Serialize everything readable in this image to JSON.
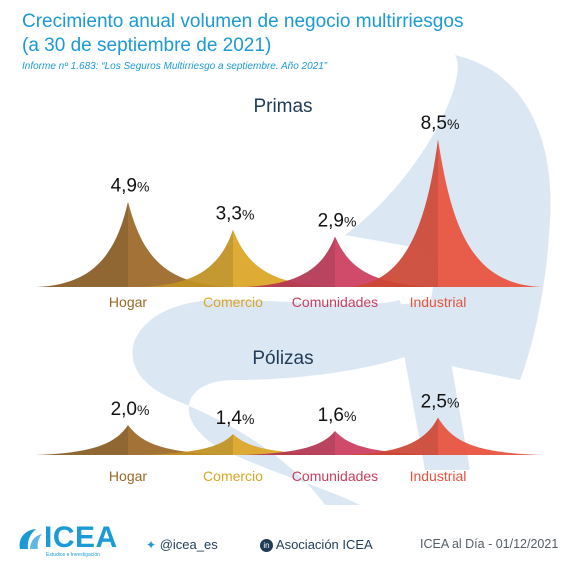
{
  "header": {
    "title_line1": "Crecimiento anual volumen de negocio multirriesgos",
    "title_line2": "(a 30 de septiembre de 2021)",
    "subtitle": "Informe nº 1.683: “Los Seguros Multirriesgo a septiembre. Año 2021”"
  },
  "colors": {
    "Hogar": "#9b6728",
    "Comercio": "#dba526",
    "Comunidades": "#cb3d5e",
    "Industrial": "#e8513c",
    "title": "#1b9ad6",
    "watermark": "#dbe8f3"
  },
  "chart_data": [
    {
      "type": "area",
      "title": "Primas",
      "categories": [
        "Hogar",
        "Comercio",
        "Comunidades",
        "Industrial"
      ],
      "values": [
        4.9,
        3.3,
        2.9,
        8.5
      ],
      "value_labels": [
        "4,9",
        "3,3",
        "2,9",
        "8,5"
      ],
      "unit": "%"
    },
    {
      "type": "area",
      "title": "Pólizas",
      "categories": [
        "Hogar",
        "Comercio",
        "Comunidades",
        "Industrial"
      ],
      "values": [
        2.0,
        1.4,
        1.6,
        2.5
      ],
      "value_labels": [
        "2,0",
        "1,4",
        "1,6",
        "2,5"
      ],
      "unit": "%"
    }
  ],
  "footer": {
    "logo": "ICEA",
    "logo_tagline": "Estudios e Investigación",
    "twitter_icon": "twitter-bird-icon",
    "twitter": "@icea_es",
    "linkedin_icon": "linkedin-icon",
    "linkedin": "Asociación ICEA",
    "date": "ICEA al Día - 01/12/2021"
  }
}
